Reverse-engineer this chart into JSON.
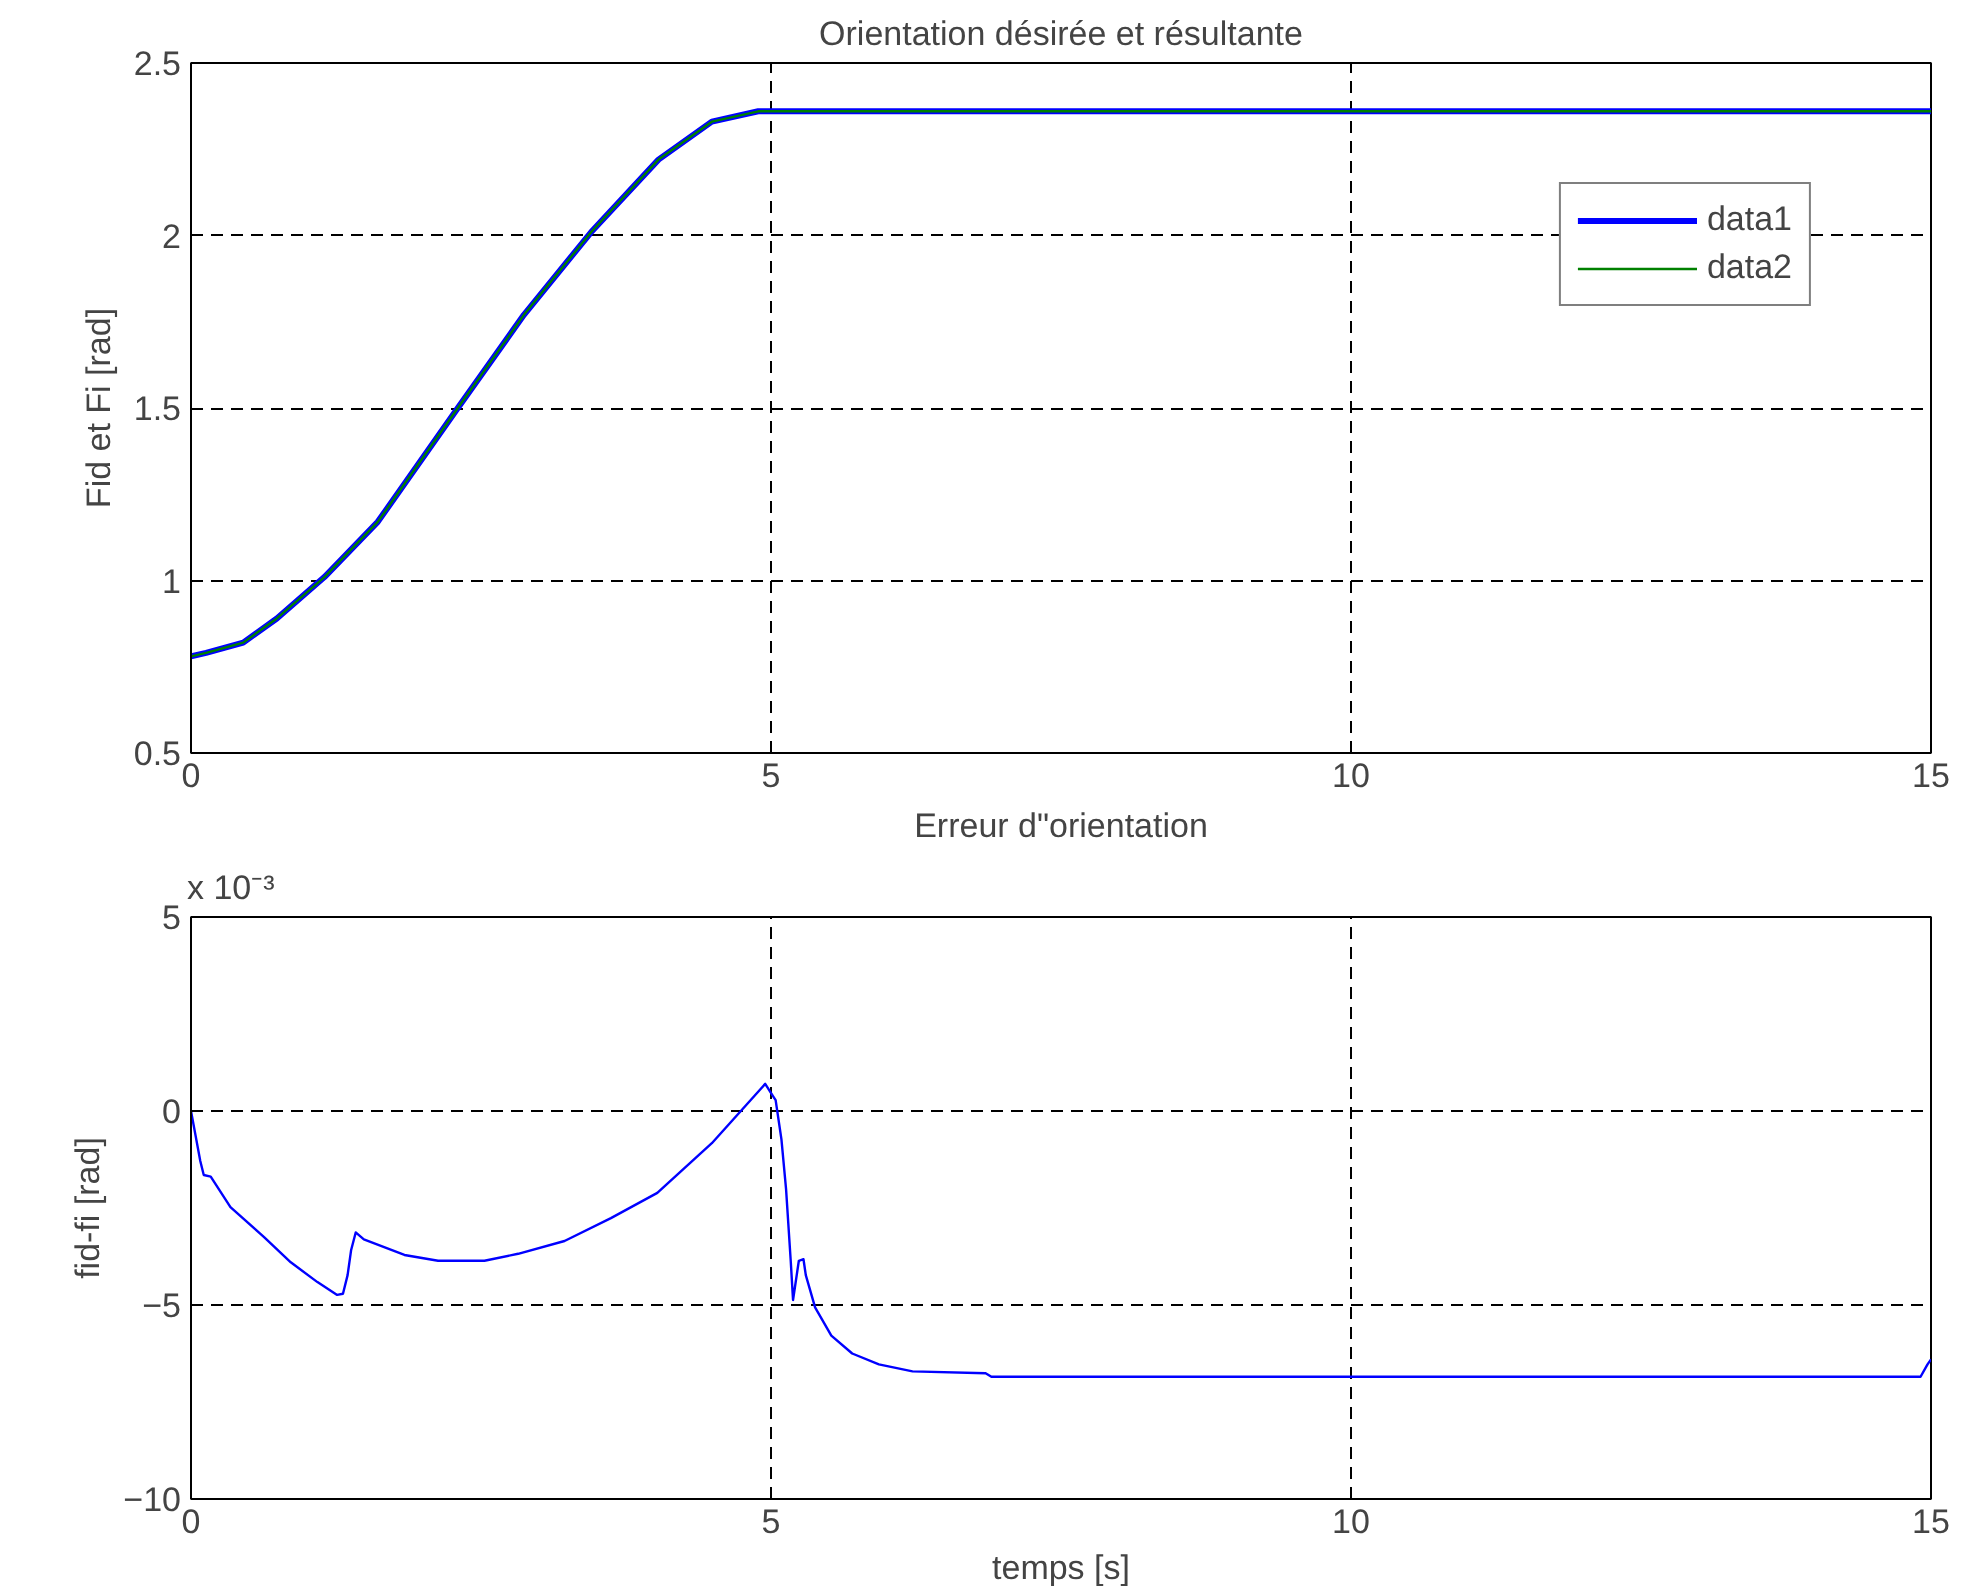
{
  "chart_data": [
    {
      "type": "line",
      "title": "Orientation désirée et résultante",
      "ylabel": "Fid et Fi [rad]",
      "x": [
        0,
        0.13,
        0.45,
        0.74,
        1.15,
        1.61,
        2.3,
        2.87,
        3.45,
        4.03,
        4.49,
        4.89,
        5,
        10,
        15
      ],
      "series": [
        {
          "name": "data1",
          "color": "#0000ff",
          "values": [
            0.78,
            0.79,
            0.82,
            0.89,
            1.01,
            1.17,
            1.5,
            1.77,
            2.01,
            2.22,
            2.33,
            2.36,
            2.36,
            2.36,
            2.36
          ]
        },
        {
          "name": "data2",
          "color": "#008000",
          "values": [
            0.78,
            0.79,
            0.82,
            0.89,
            1.01,
            1.17,
            1.5,
            1.77,
            2.01,
            2.22,
            2.33,
            2.36,
            2.36,
            2.36,
            2.36
          ]
        }
      ],
      "xlim": [
        0,
        15
      ],
      "xticks": [
        0,
        5,
        10,
        15
      ],
      "ylim": [
        0.5,
        2.5
      ],
      "yticks": [
        0.5,
        1,
        1.5,
        2,
        2.5
      ],
      "grid": true,
      "legend": "top right"
    },
    {
      "type": "line",
      "title": "Erreur d\"orientation",
      "xlabel": "temps [s]",
      "ylabel": "fid-fi [rad]",
      "annotations": [
        "x 10⁻³"
      ],
      "x": [
        0,
        0.08,
        0.11,
        0.17,
        0.34,
        0.63,
        0.86,
        1.09,
        1.26,
        1.31,
        1.35,
        1.38,
        1.42,
        1.49,
        1.84,
        2.13,
        2.53,
        2.82,
        3.22,
        3.62,
        4.02,
        4.49,
        4.95,
        5.02,
        5.04,
        5.09,
        5.13,
        5.17,
        5.19,
        5.24,
        5.28,
        5.3,
        5.38,
        5.52,
        5.7,
        5.93,
        6.22,
        6.85,
        6.9,
        14.91,
        14.97,
        15
      ],
      "series": [
        {
          "color": "#0000ff",
          "values": [
            0,
            -1.29,
            -1.65,
            -1.69,
            -2.48,
            -3.25,
            -3.9,
            -4.41,
            -4.74,
            -4.71,
            -4.23,
            -3.59,
            -3.13,
            -3.31,
            -3.71,
            -3.86,
            -3.86,
            -3.68,
            -3.35,
            -2.76,
            -2.11,
            -0.83,
            0.7,
            0.37,
            0.28,
            -0.73,
            -2.02,
            -3.86,
            -4.87,
            -3.86,
            -3.82,
            -4.23,
            -5.06,
            -5.79,
            -6.25,
            -6.53,
            -6.71,
            -6.76,
            -6.85,
            -6.85,
            -6.53,
            -6.4
          ]
        }
      ],
      "xlim": [
        0,
        15
      ],
      "xticks": [
        0,
        5,
        10,
        15
      ],
      "ylim": [
        -10,
        5
      ],
      "yticks": [
        -10,
        -5,
        0,
        5
      ],
      "grid": true
    }
  ]
}
